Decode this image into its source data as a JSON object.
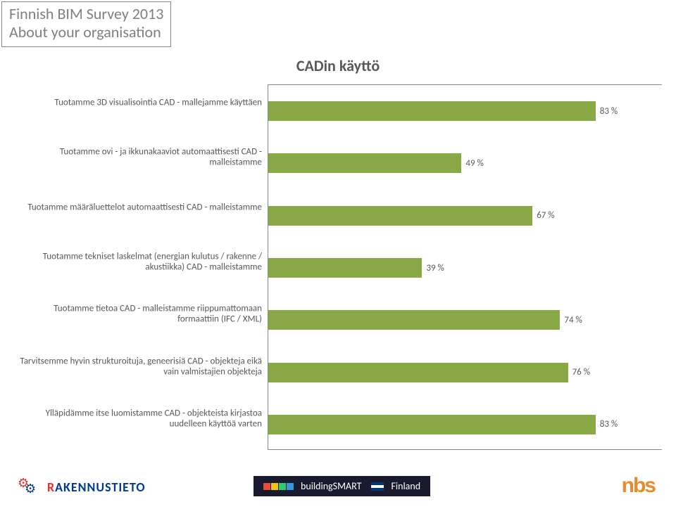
{
  "header": {
    "line1": "Finnish BIM Survey 2013",
    "line2": "About your organisation",
    "color": "#7f7f7f",
    "fontsize": 22
  },
  "chart": {
    "type": "bar-horizontal",
    "title": "CADin käyttö",
    "title_fontsize": 22,
    "title_color": "#595959",
    "bar_color": "#88a945",
    "label_color": "#595959",
    "label_fontsize": 13,
    "value_suffix": " %",
    "xmax": 100,
    "axis_color": "#888888",
    "background_color": "#ffffff",
    "rows": [
      {
        "label": "Tuotamme 3D visualisointia CAD - mallejamme käyttäen",
        "value": 83
      },
      {
        "label": "Tuotamme ovi - ja ikkunakaaviot automaattisesti CAD -malleistamme",
        "value": 49
      },
      {
        "label": "Tuotamme määräluettelot automaattisesti CAD - malleistamme",
        "value": 67
      },
      {
        "label": "Tuotamme tekniset laskelmat (energian kulutus / rakenne / akustiikka) CAD - malleistamme",
        "value": 39
      },
      {
        "label": "Tuotamme tietoa CAD - malleistamme riippumattomaan formaattiin (IFC / XML)",
        "value": 74
      },
      {
        "label": "Tarvitsemme hyvin strukturoituja, geneerisiä CAD - objekteja eikä vain valmistajien objekteja",
        "value": 76
      },
      {
        "label": "Ylläpidämme itse luomistamme CAD - objekteista kirjastoa uudelleen käyttöä varten",
        "value": 83
      }
    ]
  },
  "footer": {
    "rakennustieto": {
      "prefix": "R",
      "rest": "AKENNUSTIETO",
      "prefix_color": "#e03030",
      "rest_color": "#003a8c"
    },
    "buildingsmart": {
      "text": "buildingSMART",
      "country": "Finland",
      "bg": "#1a1a2e",
      "cube_colors": [
        "#e74c3c",
        "#f1c40f",
        "#2ecc71",
        "#3498db"
      ],
      "flag_colors": [
        "#003580",
        "#ffffff",
        "#003580"
      ]
    },
    "nbs": {
      "text": "nbs",
      "color": "#e88b2d"
    }
  }
}
